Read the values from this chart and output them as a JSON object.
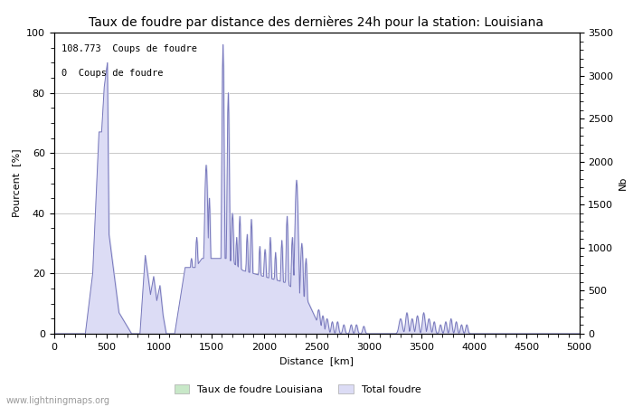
{
  "title": "Taux de foudre par distance des dernières 24h pour la station: Louisiana",
  "xlabel": "Distance  [km]",
  "ylabel_left": "Pourcent  [%]",
  "ylabel_right": "Nb",
  "xlim": [
    0,
    5000
  ],
  "ylim_left": [
    0,
    100
  ],
  "ylim_right": [
    0,
    3500
  ],
  "annotation_line1": "108.773  Coups de foudre",
  "annotation_line2": "0  Coups de foudre",
  "legend_green": "Taux de foudre Louisiana",
  "legend_blue": "Total foudre",
  "watermark": "www.lightningmaps.org",
  "background_color": "#ffffff",
  "fill_blue_color": "#dcdcf5",
  "fill_blue_edge": "#7777bb",
  "fill_green_color": "#c8e8c8",
  "grid_color": "#c8c8c8",
  "title_fontsize": 10,
  "label_fontsize": 8,
  "tick_fontsize": 8,
  "xticks": [
    0,
    500,
    1000,
    1500,
    2000,
    2500,
    3000,
    3500,
    4000,
    4500,
    5000
  ],
  "yticks_left": [
    0,
    20,
    40,
    60,
    80,
    100
  ],
  "yticks_right": [
    0,
    500,
    1000,
    1500,
    2000,
    2500,
    3000,
    3500
  ]
}
